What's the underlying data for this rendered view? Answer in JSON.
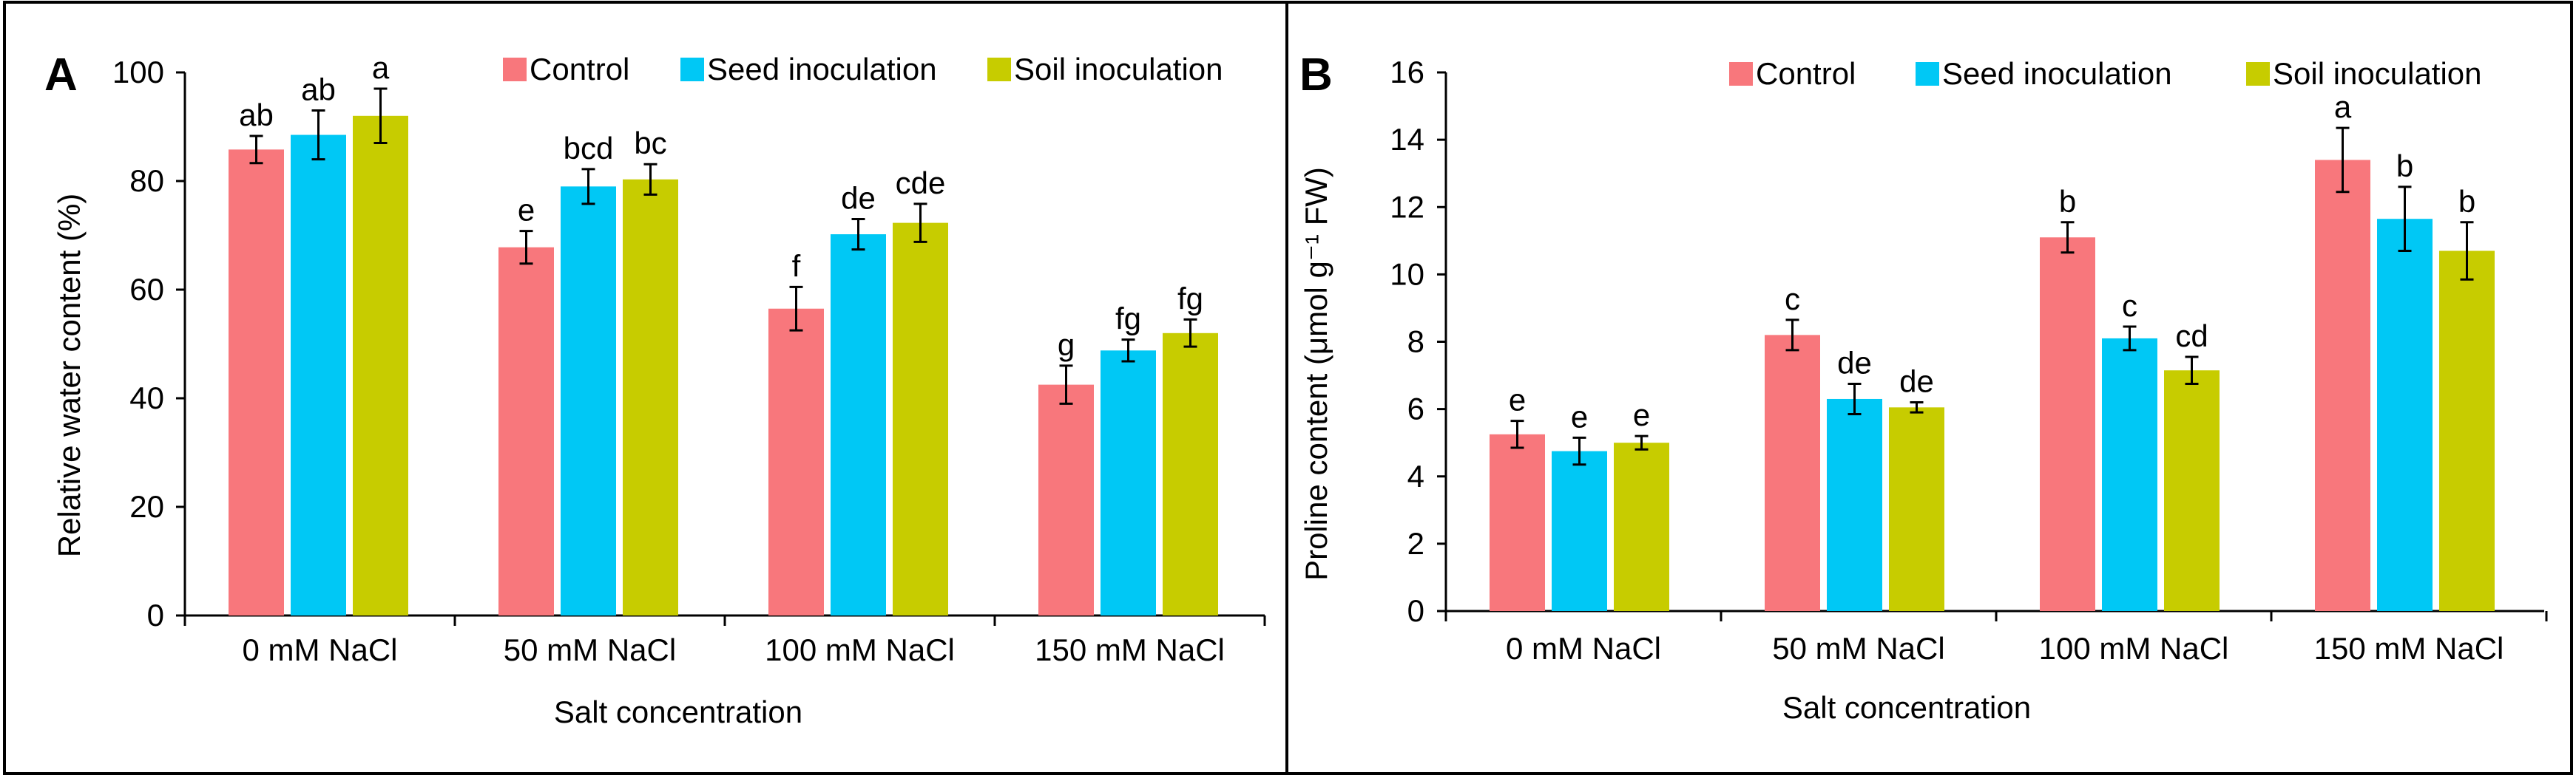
{
  "colors": {
    "control": "#F8777C",
    "seed": "#00C8F5",
    "soil": "#C7CC00",
    "axis": "#000000",
    "frame": "#000000"
  },
  "chart_data": [
    {
      "panel": "A",
      "type": "bar",
      "title": "",
      "xlabel": "Salt concentration",
      "ylabel": "Relative water content (%)",
      "ylim": [
        0,
        100
      ],
      "yticks": [
        0,
        20,
        40,
        60,
        80,
        100
      ],
      "categories": [
        "0 mM NaCl",
        "50 mM NaCl",
        "100 mM NaCl",
        "150 mM NaCl"
      ],
      "legend_position": "top-right",
      "series": [
        {
          "key": "control",
          "name": "Control",
          "values": [
            85.8,
            67.8,
            56.5,
            42.5
          ],
          "errors": [
            2.5,
            3.0,
            4.0,
            3.5
          ],
          "letters": [
            "ab",
            "e",
            "f",
            "g"
          ]
        },
        {
          "key": "seed",
          "name": "Seed inoculation",
          "values": [
            88.5,
            79.0,
            70.2,
            48.8
          ],
          "errors": [
            4.5,
            3.2,
            2.8,
            2.0
          ],
          "letters": [
            "ab",
            "bcd",
            "de",
            "fg"
          ]
        },
        {
          "key": "soil",
          "name": "Soil inoculation",
          "values": [
            92.0,
            80.3,
            72.3,
            52.0
          ],
          "errors": [
            5.0,
            2.8,
            3.5,
            2.5
          ],
          "letters": [
            "a",
            "bc",
            "cde",
            "fg"
          ]
        }
      ]
    },
    {
      "panel": "B",
      "type": "bar",
      "title": "",
      "xlabel": "Salt concentration",
      "ylabel": "Proline content (μmol g⁻¹ FW)",
      "ylim": [
        0,
        16
      ],
      "yticks": [
        0,
        2,
        4,
        6,
        8,
        10,
        12,
        14,
        16
      ],
      "categories": [
        "0 mM NaCl",
        "50 mM NaCl",
        "100 mM NaCl",
        "150 mM NaCl"
      ],
      "legend_position": "top-right",
      "series": [
        {
          "key": "control",
          "name": "Control",
          "values": [
            5.25,
            8.2,
            11.1,
            13.4
          ],
          "errors": [
            0.4,
            0.45,
            0.45,
            0.95
          ],
          "letters": [
            "e",
            "c",
            "b",
            "a"
          ]
        },
        {
          "key": "seed",
          "name": "Seed inoculation",
          "values": [
            4.75,
            6.3,
            8.1,
            11.65
          ],
          "errors": [
            0.4,
            0.45,
            0.35,
            0.95
          ],
          "letters": [
            "e",
            "de",
            "c",
            "b"
          ]
        },
        {
          "key": "soil",
          "name": "Soil inoculation",
          "values": [
            5.0,
            6.05,
            7.15,
            10.7
          ],
          "errors": [
            0.2,
            0.15,
            0.4,
            0.85
          ],
          "letters": [
            "e",
            "de",
            "cd",
            "b"
          ]
        }
      ]
    }
  ]
}
